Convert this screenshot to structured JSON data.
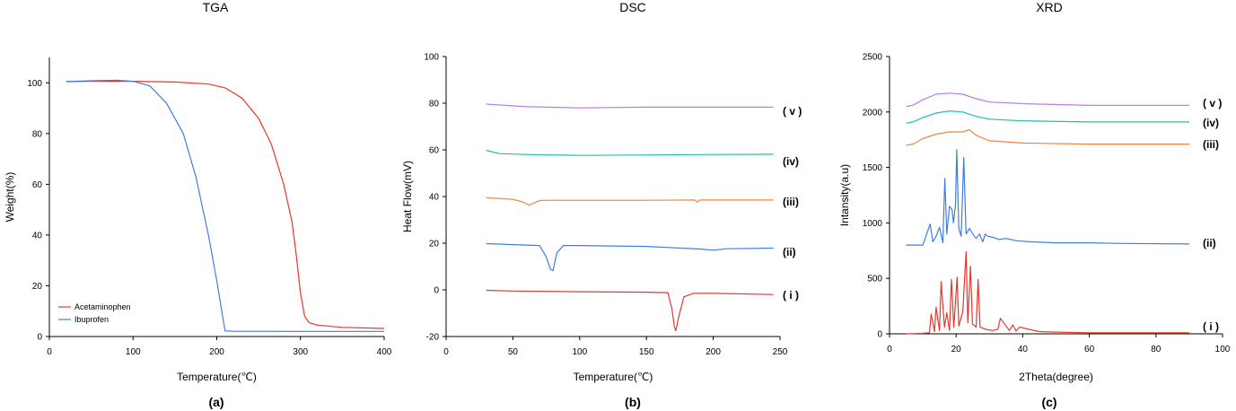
{
  "colors": {
    "red": "#e8372c",
    "blue": "#3f7fdc",
    "orange": "#ee8445",
    "teal": "#1fbdb0",
    "purple": "#b97ee6"
  },
  "chart_data": [
    {
      "type": "line",
      "title": "TGA",
      "panel": "(a)",
      "xlabel": "Temperature(℃)",
      "ylabel": "Weight(%)",
      "xlim": [
        0,
        400
      ],
      "ylim": [
        0,
        110
      ],
      "xticks": [
        0,
        100,
        200,
        300,
        400
      ],
      "yticks": [
        0,
        20,
        40,
        60,
        80,
        100
      ],
      "grid": false,
      "legend": "bottom-left",
      "series": [
        {
          "name": "Acetaminophen",
          "color": "#e8372c",
          "x": [
            20,
            50,
            100,
            150,
            190,
            210,
            230,
            250,
            265,
            280,
            290,
            295,
            300,
            305,
            310,
            320,
            350,
            400
          ],
          "y": [
            100.5,
            100.6,
            100.6,
            100.3,
            99.5,
            98.0,
            94.0,
            86.0,
            76.0,
            60.0,
            45.0,
            32.0,
            17.0,
            8.0,
            5.5,
            4.5,
            3.6,
            3.2
          ]
        },
        {
          "name": "Ibuprofen",
          "color": "#3f7fdc",
          "x": [
            20,
            50,
            80,
            100,
            120,
            140,
            160,
            175,
            190,
            200,
            207,
            210,
            220,
            300,
            400
          ],
          "y": [
            100.5,
            100.8,
            101.0,
            100.6,
            98.8,
            92.0,
            80.0,
            63.0,
            40.0,
            22.0,
            8.0,
            2.2,
            2.1,
            2.0,
            2.0
          ]
        }
      ]
    },
    {
      "type": "line",
      "title": "DSC",
      "panel": "(b)",
      "xlabel": "Temperature(℃)",
      "ylabel": "Heat Flow(mV)",
      "xlim": [
        0,
        250
      ],
      "ylim": [
        -20,
        100
      ],
      "xticks": [
        0,
        50,
        100,
        150,
        200,
        250
      ],
      "yticks": [
        -20,
        0,
        20,
        40,
        60,
        80,
        100
      ],
      "grid": false,
      "series": [
        {
          "name": "",
          "label": "( v )",
          "color": "#b97ee6",
          "x": [
            30,
            60,
            100,
            150,
            200,
            245
          ],
          "y": [
            79.6,
            78.5,
            78.0,
            78.3,
            78.3,
            78.3
          ]
        },
        {
          "name": "",
          "label": "(iv)",
          "color": "#1fbdb0",
          "x": [
            30,
            40,
            60,
            100,
            150,
            200,
            245
          ],
          "y": [
            59.8,
            58.4,
            58.0,
            57.6,
            57.8,
            58.0,
            58.1
          ]
        },
        {
          "name": "",
          "label": "(iii)",
          "color": "#ee8445",
          "x": [
            30,
            50,
            58,
            62,
            70,
            80,
            150,
            186,
            188,
            190,
            245
          ],
          "y": [
            39.5,
            38.8,
            37.5,
            36.3,
            38.3,
            38.4,
            38.4,
            38.5,
            37.6,
            38.5,
            38.5
          ]
        },
        {
          "name": "",
          "label": "(ii)",
          "color": "#3f7fdc",
          "x": [
            30,
            60,
            70,
            75,
            78,
            80,
            83,
            88,
            100,
            150,
            190,
            200,
            210,
            245
          ],
          "y": [
            19.8,
            19.2,
            19.0,
            14.0,
            9.0,
            8.2,
            16.0,
            19.0,
            19.0,
            18.6,
            17.5,
            17.0,
            17.6,
            17.9
          ]
        },
        {
          "name": "",
          "label": "( i )",
          "color": "#e8372c",
          "x": [
            30,
            50,
            100,
            150,
            166,
            169,
            171,
            172,
            174,
            178,
            185,
            200,
            245
          ],
          "y": [
            -0.2,
            -0.5,
            -0.8,
            -1.0,
            -1.2,
            -8.0,
            -16.0,
            -17.5,
            -12.0,
            -3.0,
            -1.5,
            -1.5,
            -2.0
          ]
        }
      ]
    },
    {
      "type": "line",
      "title": "XRD",
      "panel": "(c)",
      "xlabel": "2Theta(degree)",
      "ylabel": "Intansity(a.u)",
      "xlim": [
        0,
        100
      ],
      "ylim": [
        0,
        2500
      ],
      "xticks": [
        0,
        20,
        40,
        60,
        80,
        100
      ],
      "yticks": [
        0,
        500,
        1000,
        1500,
        2000,
        2500
      ],
      "grid": false,
      "series": [
        {
          "name": "",
          "label": "( v )",
          "color": "#b97ee6",
          "x": [
            5,
            7,
            10,
            14,
            18,
            22,
            26,
            30,
            40,
            60,
            90
          ],
          "y": [
            2050,
            2060,
            2110,
            2160,
            2170,
            2160,
            2120,
            2090,
            2075,
            2060,
            2060
          ]
        },
        {
          "name": "",
          "label": "(iv)",
          "color": "#1fbdb0",
          "x": [
            5,
            7,
            10,
            14,
            18,
            22,
            26,
            30,
            40,
            60,
            90
          ],
          "y": [
            1900,
            1910,
            1950,
            1990,
            2010,
            2000,
            1960,
            1935,
            1920,
            1910,
            1910
          ]
        },
        {
          "name": "",
          "label": "(iii)",
          "color": "#ee8445",
          "x": [
            5,
            7,
            10,
            14,
            18,
            22,
            24,
            26,
            30,
            40,
            60,
            90
          ],
          "y": [
            1700,
            1710,
            1760,
            1800,
            1820,
            1820,
            1840,
            1790,
            1740,
            1720,
            1710,
            1710
          ]
        },
        {
          "name": "",
          "label": "(ii)",
          "color": "#3f7fdc",
          "x": [
            5,
            10,
            12.2,
            13,
            14,
            15,
            16,
            16.6,
            17.2,
            18,
            18.8,
            19.2,
            19.8,
            20.2,
            20.8,
            21.5,
            22.3,
            23,
            24,
            25,
            26,
            27,
            28,
            28.7,
            29.5,
            31,
            33,
            35,
            38,
            42,
            50,
            60,
            70,
            90
          ],
          "y": [
            800,
            800,
            990,
            830,
            880,
            960,
            820,
            1400,
            900,
            1150,
            1120,
            1000,
            1160,
            1660,
            950,
            880,
            1590,
            900,
            950,
            900,
            860,
            900,
            830,
            900,
            880,
            870,
            850,
            860,
            840,
            830,
            820,
            820,
            815,
            810
          ]
        },
        {
          "name": "",
          "label": "( i )",
          "color": "#e8372c",
          "x": [
            5,
            10,
            12,
            12.5,
            13.5,
            14,
            15,
            15.5,
            16.5,
            17.2,
            18,
            18.6,
            19.3,
            20.3,
            20.8,
            22,
            23,
            23.5,
            24.3,
            24.9,
            26,
            26.6,
            27.2,
            29,
            31,
            32.5,
            33.3,
            36,
            37,
            38,
            39,
            45,
            50,
            60,
            70,
            90
          ],
          "y": [
            0,
            5,
            10,
            180,
            20,
            240,
            30,
            470,
            60,
            190,
            30,
            490,
            60,
            510,
            70,
            200,
            740,
            100,
            610,
            90,
            60,
            490,
            60,
            40,
            30,
            40,
            140,
            30,
            80,
            25,
            60,
            20,
            15,
            10,
            10,
            10
          ]
        }
      ]
    }
  ]
}
